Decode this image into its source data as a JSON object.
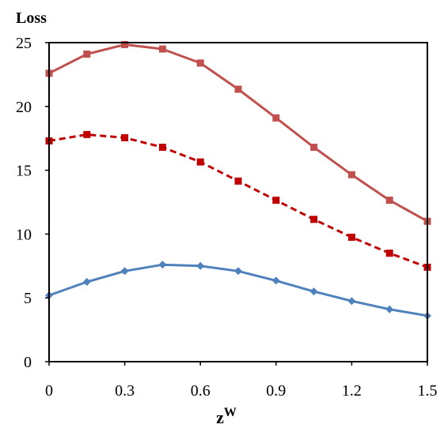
{
  "chart_data": {
    "type": "line",
    "title": "",
    "ylabel": "Loss",
    "xlabel": "z",
    "xlabel_superscript": "W",
    "xlim": [
      0,
      1.5
    ],
    "ylim": [
      0,
      25
    ],
    "xticks": [
      "0",
      "0.3",
      "0.6",
      "0.9",
      "1.2",
      "1.5"
    ],
    "yticks": [
      "0",
      "5",
      "10",
      "15",
      "20",
      "25"
    ],
    "x": [
      0,
      0.15,
      0.3,
      0.45,
      0.6,
      0.75,
      0.9,
      1.05,
      1.2,
      1.35,
      1.5
    ],
    "grid": false,
    "legend": "none",
    "series": [
      {
        "values": [
          22.6,
          24.1,
          24.85,
          24.5,
          23.4,
          21.35,
          19.1,
          16.8,
          14.65,
          12.65,
          11.0
        ],
        "color": "#c0504d",
        "line_style": "solid",
        "marker": "square"
      },
      {
        "values": [
          17.3,
          17.8,
          17.55,
          16.8,
          15.65,
          14.15,
          12.65,
          11.15,
          9.75,
          8.5,
          7.4
        ],
        "color": "#c00000",
        "line_style": "dashed",
        "marker": "square"
      },
      {
        "values": [
          5.2,
          6.25,
          7.1,
          7.6,
          7.5,
          7.1,
          6.35,
          5.5,
          4.75,
          4.1,
          3.6
        ],
        "color": "#4f81bd",
        "line_style": "solid",
        "marker": "diamond"
      }
    ]
  }
}
